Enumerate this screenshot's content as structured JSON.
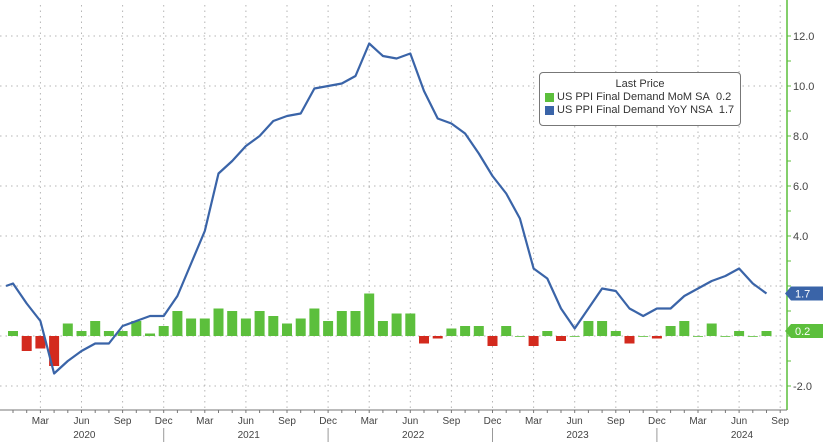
{
  "chart_data": {
    "type": "bar+line",
    "legend": {
      "title": "Last Price",
      "placement": "top-right"
    },
    "colors": {
      "mom": "#5cbf3c",
      "mom_negative": "#d32a1e",
      "yoy": "#3a64a8",
      "axis": "#5cbf3c",
      "grid": "#b5b5b5"
    },
    "x_months": [
      "2020-01",
      "2020-02",
      "2020-03",
      "2020-04",
      "2020-05",
      "2020-06",
      "2020-07",
      "2020-08",
      "2020-09",
      "2020-10",
      "2020-11",
      "2020-12",
      "2021-01",
      "2021-02",
      "2021-03",
      "2021-04",
      "2021-05",
      "2021-06",
      "2021-07",
      "2021-08",
      "2021-09",
      "2021-10",
      "2021-11",
      "2021-12",
      "2022-01",
      "2022-02",
      "2022-03",
      "2022-04",
      "2022-05",
      "2022-06",
      "2022-07",
      "2022-08",
      "2022-09",
      "2022-10",
      "2022-11",
      "2022-12",
      "2023-01",
      "2023-02",
      "2023-03",
      "2023-04",
      "2023-05",
      "2023-06",
      "2023-07",
      "2023-08",
      "2023-09",
      "2023-10",
      "2023-11",
      "2023-12",
      "2024-01",
      "2024-02",
      "2024-03",
      "2024-04",
      "2024-05",
      "2024-06",
      "2024-07",
      "2024-08"
    ],
    "series": [
      {
        "name": "US PPI Final Demand MoM SA",
        "last": "0.2",
        "type": "bar",
        "values": [
          0.2,
          -0.6,
          -0.5,
          -1.2,
          0.5,
          0.2,
          0.6,
          0.2,
          0.2,
          0.6,
          0.1,
          0.4,
          1.0,
          0.7,
          0.7,
          1.1,
          1.0,
          0.7,
          1.0,
          0.8,
          0.5,
          0.7,
          1.1,
          0.6,
          1.0,
          1.0,
          1.7,
          0.6,
          0.9,
          0.9,
          -0.3,
          -0.1,
          0.3,
          0.4,
          0.4,
          -0.4,
          0.4,
          0.0,
          -0.4,
          0.2,
          -0.2,
          0.0,
          0.6,
          0.6,
          0.2,
          -0.3,
          0.0,
          -0.1,
          0.4,
          0.6,
          0.0,
          0.5,
          0.0,
          0.2,
          0.0,
          0.2
        ]
      },
      {
        "name": "US PPI Final Demand YoY NSA",
        "last": "1.7",
        "type": "line",
        "values": [
          2.1,
          1.3,
          0.6,
          -1.5,
          -1.0,
          -0.6,
          -0.3,
          -0.3,
          0.4,
          0.6,
          0.8,
          0.8,
          1.6,
          2.9,
          4.2,
          6.5,
          7.0,
          7.6,
          8.0,
          8.6,
          8.8,
          8.9,
          9.9,
          10.0,
          10.1,
          10.4,
          11.7,
          11.2,
          11.1,
          11.3,
          9.8,
          8.7,
          8.5,
          8.1,
          7.3,
          6.4,
          5.7,
          4.7,
          2.7,
          2.3,
          1.1,
          0.3,
          1.1,
          1.9,
          1.8,
          1.1,
          0.8,
          1.1,
          1.1,
          1.6,
          1.9,
          2.2,
          2.4,
          2.7,
          2.1,
          1.7
        ]
      }
    ],
    "y_axis": {
      "side": "right",
      "ylim": [
        -3.0,
        13.0
      ],
      "tick_labels": [
        "12.0",
        "10.0",
        "8.0",
        "6.0",
        "4.0",
        "-2.0"
      ],
      "tick_values": [
        12,
        10,
        8,
        6,
        4,
        -2
      ]
    },
    "x_axis": {
      "month_labels": [
        {
          "label": "Mar",
          "index": 2
        },
        {
          "label": "Jun",
          "index": 5
        },
        {
          "label": "Sep",
          "index": 8
        },
        {
          "label": "Dec",
          "index": 11
        },
        {
          "label": "Mar",
          "index": 14
        },
        {
          "label": "Jun",
          "index": 17
        },
        {
          "label": "Sep",
          "index": 20
        },
        {
          "label": "Dec",
          "index": 23
        },
        {
          "label": "Mar",
          "index": 26
        },
        {
          "label": "Jun",
          "index": 29
        },
        {
          "label": "Sep",
          "index": 32
        },
        {
          "label": "Dec",
          "index": 35
        },
        {
          "label": "Mar",
          "index": 38
        },
        {
          "label": "Jun",
          "index": 41
        },
        {
          "label": "Sep",
          "index": 44
        },
        {
          "label": "Dec",
          "index": 47
        },
        {
          "label": "Mar",
          "index": 50
        },
        {
          "label": "Jun",
          "index": 53
        },
        {
          "label": "Sep",
          "index": 56
        }
      ],
      "year_labels": [
        {
          "label": "2020",
          "index": 5.5
        },
        {
          "label": "2021",
          "index": 17.5
        },
        {
          "label": "2022",
          "index": 29.5
        },
        {
          "label": "2023",
          "index": 41.5
        },
        {
          "label": "2024",
          "index": 53.5
        }
      ]
    },
    "grid": true
  }
}
